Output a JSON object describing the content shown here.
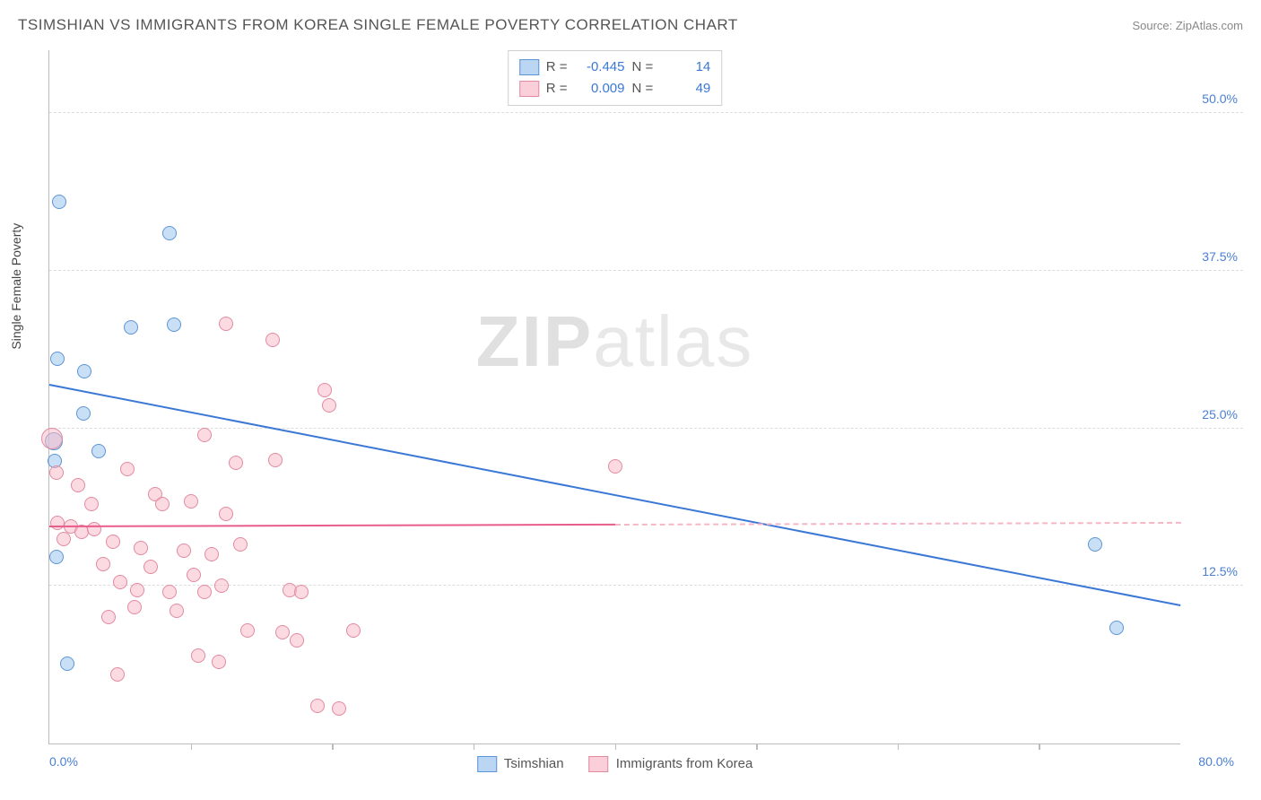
{
  "title": "TSIMSHIAN VS IMMIGRANTS FROM KOREA SINGLE FEMALE POVERTY CORRELATION CHART",
  "source": "Source: ZipAtlas.com",
  "ylabel": "Single Female Poverty",
  "watermark_a": "ZIP",
  "watermark_b": "atlas",
  "chart": {
    "type": "scatter",
    "xlim": [
      0,
      80
    ],
    "ylim": [
      0,
      55
    ],
    "x_min_label": "0.0%",
    "x_max_label": "80.0%",
    "y_ticks": [
      12.5,
      25.0,
      37.5,
      50.0
    ],
    "y_tick_labels": [
      "12.5%",
      "25.0%",
      "37.5%",
      "50.0%"
    ],
    "x_tick_positions": [
      10,
      20,
      30,
      40,
      50,
      60,
      70
    ],
    "grid_color": "#dddddd",
    "axis_color": "#bbbbbb",
    "background_color": "#ffffff"
  },
  "series": [
    {
      "name": "Tsimshian",
      "color_fill": "#9cc4ec",
      "color_stroke": "#5c95d6",
      "R": "-0.445",
      "N": "14",
      "trend": {
        "x1": 0,
        "y1": 28.5,
        "x2": 80,
        "y2": 11.0,
        "solid_to_x": 80,
        "color": "#3b78d6"
      },
      "points": [
        {
          "x": 0.7,
          "y": 43.0,
          "r": 8
        },
        {
          "x": 8.5,
          "y": 40.5,
          "r": 8
        },
        {
          "x": 5.8,
          "y": 33.0,
          "r": 8
        },
        {
          "x": 8.8,
          "y": 33.2,
          "r": 8
        },
        {
          "x": 0.6,
          "y": 30.5,
          "r": 8
        },
        {
          "x": 2.5,
          "y": 29.5,
          "r": 8
        },
        {
          "x": 2.4,
          "y": 26.2,
          "r": 8
        },
        {
          "x": 0.3,
          "y": 24.0,
          "r": 10
        },
        {
          "x": 3.5,
          "y": 23.2,
          "r": 8
        },
        {
          "x": 0.4,
          "y": 22.4,
          "r": 8
        },
        {
          "x": 0.5,
          "y": 14.8,
          "r": 8
        },
        {
          "x": 74.0,
          "y": 15.8,
          "r": 8
        },
        {
          "x": 75.5,
          "y": 9.2,
          "r": 8
        },
        {
          "x": 1.3,
          "y": 6.3,
          "r": 8
        }
      ]
    },
    {
      "name": "Immigrants from Korea",
      "color_fill": "#f8bbc9",
      "color_stroke": "#e28aa0",
      "R": "0.009",
      "N": "49",
      "trend": {
        "x1": 0,
        "y1": 17.3,
        "x2": 80,
        "y2": 17.6,
        "solid_to_x": 40,
        "color": "#e85d8a",
        "dash_color": "#f6b6c5"
      },
      "points": [
        {
          "x": 12.5,
          "y": 33.3,
          "r": 8
        },
        {
          "x": 15.8,
          "y": 32.0,
          "r": 8
        },
        {
          "x": 19.5,
          "y": 28.0,
          "r": 8
        },
        {
          "x": 19.8,
          "y": 26.8,
          "r": 8
        },
        {
          "x": 0.2,
          "y": 24.2,
          "r": 12
        },
        {
          "x": 11.0,
          "y": 24.5,
          "r": 8
        },
        {
          "x": 13.2,
          "y": 22.3,
          "r": 8
        },
        {
          "x": 16.0,
          "y": 22.5,
          "r": 8
        },
        {
          "x": 40.0,
          "y": 22.0,
          "r": 8
        },
        {
          "x": 0.5,
          "y": 21.5,
          "r": 8
        },
        {
          "x": 2.0,
          "y": 20.5,
          "r": 8
        },
        {
          "x": 5.5,
          "y": 21.8,
          "r": 8
        },
        {
          "x": 7.5,
          "y": 19.8,
          "r": 8
        },
        {
          "x": 3.0,
          "y": 19.0,
          "r": 8
        },
        {
          "x": 8.0,
          "y": 19.0,
          "r": 8
        },
        {
          "x": 10.0,
          "y": 19.2,
          "r": 8
        },
        {
          "x": 12.5,
          "y": 18.2,
          "r": 8
        },
        {
          "x": 0.6,
          "y": 17.5,
          "r": 8
        },
        {
          "x": 1.5,
          "y": 17.2,
          "r": 8
        },
        {
          "x": 2.3,
          "y": 16.8,
          "r": 8
        },
        {
          "x": 3.2,
          "y": 17.0,
          "r": 8
        },
        {
          "x": 1.0,
          "y": 16.2,
          "r": 8
        },
        {
          "x": 4.5,
          "y": 16.0,
          "r": 8
        },
        {
          "x": 6.5,
          "y": 15.5,
          "r": 8
        },
        {
          "x": 9.5,
          "y": 15.3,
          "r": 8
        },
        {
          "x": 11.5,
          "y": 15.0,
          "r": 8
        },
        {
          "x": 13.5,
          "y": 15.8,
          "r": 8
        },
        {
          "x": 3.8,
          "y": 14.2,
          "r": 8
        },
        {
          "x": 7.2,
          "y": 14.0,
          "r": 8
        },
        {
          "x": 10.2,
          "y": 13.4,
          "r": 8
        },
        {
          "x": 5.0,
          "y": 12.8,
          "r": 8
        },
        {
          "x": 6.2,
          "y": 12.2,
          "r": 8
        },
        {
          "x": 8.5,
          "y": 12.0,
          "r": 8
        },
        {
          "x": 11.0,
          "y": 12.0,
          "r": 8
        },
        {
          "x": 12.2,
          "y": 12.5,
          "r": 8
        },
        {
          "x": 17.0,
          "y": 12.2,
          "r": 8
        },
        {
          "x": 17.8,
          "y": 12.0,
          "r": 8
        },
        {
          "x": 6.0,
          "y": 10.8,
          "r": 8
        },
        {
          "x": 9.0,
          "y": 10.5,
          "r": 8
        },
        {
          "x": 4.2,
          "y": 10.0,
          "r": 8
        },
        {
          "x": 14.0,
          "y": 9.0,
          "r": 8
        },
        {
          "x": 16.5,
          "y": 8.8,
          "r": 8
        },
        {
          "x": 17.5,
          "y": 8.2,
          "r": 8
        },
        {
          "x": 21.5,
          "y": 9.0,
          "r": 8
        },
        {
          "x": 10.5,
          "y": 7.0,
          "r": 8
        },
        {
          "x": 12.0,
          "y": 6.5,
          "r": 8
        },
        {
          "x": 4.8,
          "y": 5.5,
          "r": 8
        },
        {
          "x": 19.0,
          "y": 3.0,
          "r": 8
        },
        {
          "x": 20.5,
          "y": 2.8,
          "r": 8
        }
      ]
    }
  ],
  "legend_top": {
    "R_label": "R =",
    "N_label": "N ="
  },
  "legend_bottom": [
    {
      "swatch": "blue",
      "label": "Tsimshian"
    },
    {
      "swatch": "pink",
      "label": "Immigrants from Korea"
    }
  ]
}
